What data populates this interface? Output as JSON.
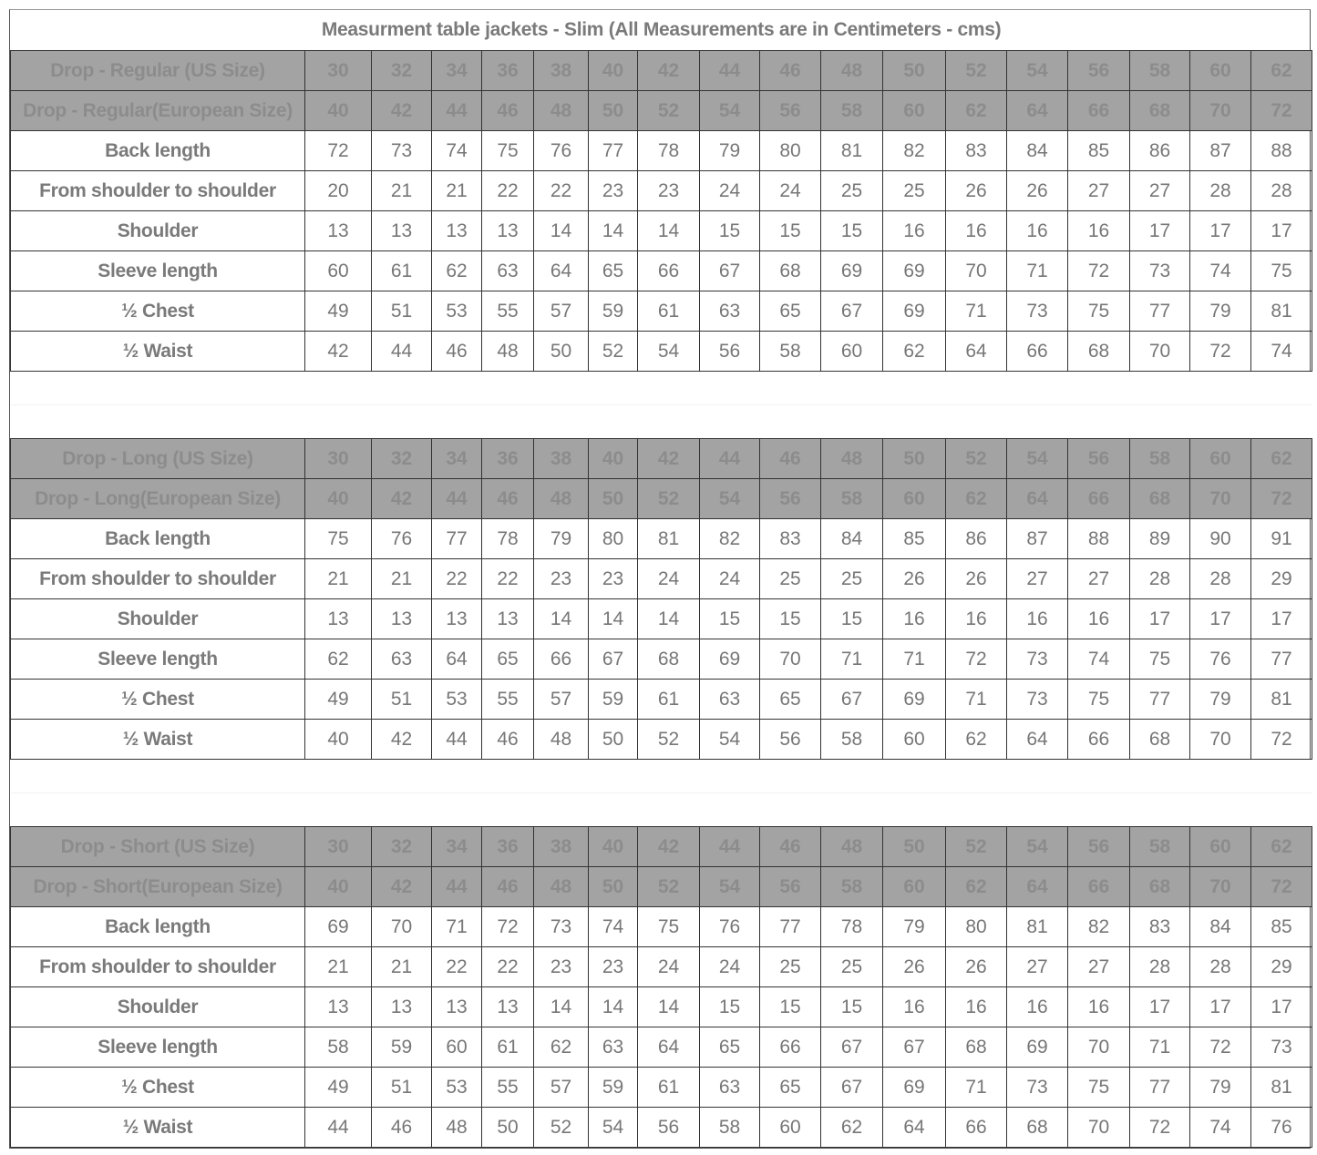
{
  "title": "Measurment table jackets - Slim (All Measurements are in Centimeters - cms)",
  "colors": {
    "header_bg": "#a3a3a3",
    "header_text": "#8c8c8c",
    "body_text": "#777777",
    "border": "#333333"
  },
  "sections": [
    {
      "name": "regular",
      "us_label": "Drop - Regular (US Size)",
      "us_sizes": [
        "30",
        "32",
        "34",
        "36",
        "38",
        "40",
        "42",
        "44",
        "46",
        "48",
        "50",
        "52",
        "54",
        "56",
        "58",
        "60",
        "62"
      ],
      "eu_label": "Drop - Regular(European Size)",
      "eu_sizes": [
        "40",
        "42",
        "44",
        "46",
        "48",
        "50",
        "52",
        "54",
        "56",
        "58",
        "60",
        "62",
        "64",
        "66",
        "68",
        "70",
        "72"
      ],
      "rows": [
        {
          "label": "Back length",
          "values": [
            "72",
            "73",
            "74",
            "75",
            "76",
            "77",
            "78",
            "79",
            "80",
            "81",
            "82",
            "83",
            "84",
            "85",
            "86",
            "87",
            "88"
          ]
        },
        {
          "label": "From shoulder to shoulder",
          "values": [
            "20",
            "21",
            "21",
            "22",
            "22",
            "23",
            "23",
            "24",
            "24",
            "25",
            "25",
            "26",
            "26",
            "27",
            "27",
            "28",
            "28"
          ]
        },
        {
          "label": "Shoulder",
          "values": [
            "13",
            "13",
            "13",
            "13",
            "14",
            "14",
            "14",
            "15",
            "15",
            "15",
            "16",
            "16",
            "16",
            "16",
            "17",
            "17",
            "17"
          ]
        },
        {
          "label": "Sleeve length",
          "values": [
            "60",
            "61",
            "62",
            "63",
            "64",
            "65",
            "66",
            "67",
            "68",
            "69",
            "69",
            "70",
            "71",
            "72",
            "73",
            "74",
            "75"
          ]
        },
        {
          "label": "½ Chest",
          "values": [
            "49",
            "51",
            "53",
            "55",
            "57",
            "59",
            "61",
            "63",
            "65",
            "67",
            "69",
            "71",
            "73",
            "75",
            "77",
            "79",
            "81"
          ]
        },
        {
          "label": "½ Waist",
          "values": [
            "42",
            "44",
            "46",
            "48",
            "50",
            "52",
            "54",
            "56",
            "58",
            "60",
            "62",
            "64",
            "66",
            "68",
            "70",
            "72",
            "74"
          ]
        }
      ]
    },
    {
      "name": "long",
      "us_label": "Drop - Long (US Size)",
      "us_sizes": [
        "30",
        "32",
        "34",
        "36",
        "38",
        "40",
        "42",
        "44",
        "46",
        "48",
        "50",
        "52",
        "54",
        "56",
        "58",
        "60",
        "62"
      ],
      "eu_label": "Drop - Long(European Size)",
      "eu_sizes": [
        "40",
        "42",
        "44",
        "46",
        "48",
        "50",
        "52",
        "54",
        "56",
        "58",
        "60",
        "62",
        "64",
        "66",
        "68",
        "70",
        "72"
      ],
      "rows": [
        {
          "label": "Back length",
          "values": [
            "75",
            "76",
            "77",
            "78",
            "79",
            "80",
            "81",
            "82",
            "83",
            "84",
            "85",
            "86",
            "87",
            "88",
            "89",
            "90",
            "91"
          ]
        },
        {
          "label": "From shoulder to shoulder",
          "values": [
            "21",
            "21",
            "22",
            "22",
            "23",
            "23",
            "24",
            "24",
            "25",
            "25",
            "26",
            "26",
            "27",
            "27",
            "28",
            "28",
            "29"
          ]
        },
        {
          "label": "Shoulder",
          "values": [
            "13",
            "13",
            "13",
            "13",
            "14",
            "14",
            "14",
            "15",
            "15",
            "15",
            "16",
            "16",
            "16",
            "16",
            "17",
            "17",
            "17"
          ]
        },
        {
          "label": "Sleeve length",
          "values": [
            "62",
            "63",
            "64",
            "65",
            "66",
            "67",
            "68",
            "69",
            "70",
            "71",
            "71",
            "72",
            "73",
            "74",
            "75",
            "76",
            "77"
          ]
        },
        {
          "label": "½ Chest",
          "values": [
            "49",
            "51",
            "53",
            "55",
            "57",
            "59",
            "61",
            "63",
            "65",
            "67",
            "69",
            "71",
            "73",
            "75",
            "77",
            "79",
            "81"
          ]
        },
        {
          "label": "½ Waist",
          "values": [
            "40",
            "42",
            "44",
            "46",
            "48",
            "50",
            "52",
            "54",
            "56",
            "58",
            "60",
            "62",
            "64",
            "66",
            "68",
            "70",
            "72"
          ]
        }
      ]
    },
    {
      "name": "short",
      "us_label": "Drop - Short (US Size)",
      "us_sizes": [
        "30",
        "32",
        "34",
        "36",
        "38",
        "40",
        "42",
        "44",
        "46",
        "48",
        "50",
        "52",
        "54",
        "56",
        "58",
        "60",
        "62"
      ],
      "eu_label": "Drop - Short(European Size)",
      "eu_sizes": [
        "40",
        "42",
        "44",
        "46",
        "48",
        "50",
        "52",
        "54",
        "56",
        "58",
        "60",
        "62",
        "64",
        "66",
        "68",
        "70",
        "72"
      ],
      "rows": [
        {
          "label": "Back length",
          "values": [
            "69",
            "70",
            "71",
            "72",
            "73",
            "74",
            "75",
            "76",
            "77",
            "78",
            "79",
            "80",
            "81",
            "82",
            "83",
            "84",
            "85"
          ]
        },
        {
          "label": "From shoulder to shoulder",
          "values": [
            "21",
            "21",
            "22",
            "22",
            "23",
            "23",
            "24",
            "24",
            "25",
            "25",
            "26",
            "26",
            "27",
            "27",
            "28",
            "28",
            "29"
          ]
        },
        {
          "label": "Shoulder",
          "values": [
            "13",
            "13",
            "13",
            "13",
            "14",
            "14",
            "14",
            "15",
            "15",
            "15",
            "16",
            "16",
            "16",
            "16",
            "17",
            "17",
            "17"
          ]
        },
        {
          "label": "Sleeve length",
          "values": [
            "58",
            "59",
            "60",
            "61",
            "62",
            "63",
            "64",
            "65",
            "66",
            "67",
            "67",
            "68",
            "69",
            "70",
            "71",
            "72",
            "73"
          ]
        },
        {
          "label": "½ Chest",
          "values": [
            "49",
            "51",
            "53",
            "55",
            "57",
            "59",
            "61",
            "63",
            "65",
            "67",
            "69",
            "71",
            "73",
            "75",
            "77",
            "79",
            "81"
          ]
        },
        {
          "label": "½ Waist",
          "values": [
            "44",
            "46",
            "48",
            "50",
            "52",
            "54",
            "56",
            "58",
            "60",
            "62",
            "64",
            "66",
            "68",
            "70",
            "72",
            "74",
            "76"
          ]
        }
      ]
    }
  ]
}
